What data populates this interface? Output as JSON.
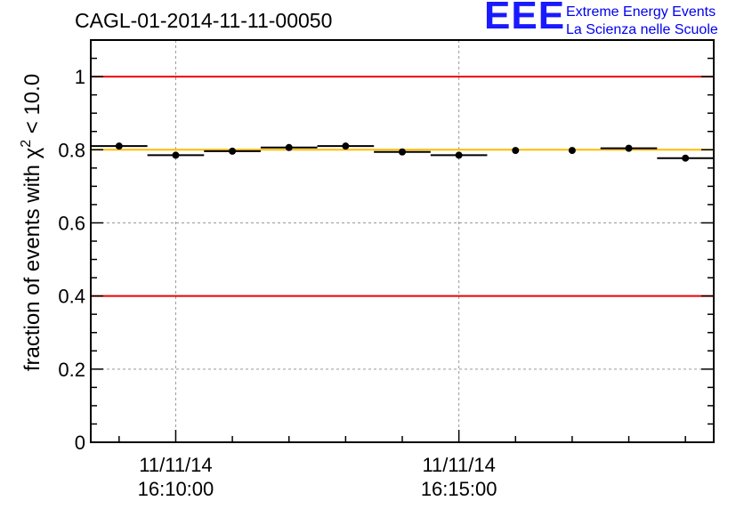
{
  "header": {
    "run_id": "CAGL-01-2014-11-11-00050",
    "logo_mark": "EEE",
    "logo_line1": "Extreme Energy Events",
    "logo_line2": "La Scienza nelle Scuole"
  },
  "chart_data": {
    "type": "scatter",
    "title": "CAGL-01-2014-11-11-00050",
    "xlabel": "",
    "ylabel": "fraction of events with χ² < 10.0",
    "ylim": [
      0,
      1.1
    ],
    "yticks": [
      0,
      0.2,
      0.4,
      0.6,
      0.8,
      1
    ],
    "ytick_labels": [
      "0",
      "0.2",
      "0.4",
      "0.6",
      "0.8",
      "1"
    ],
    "xlim_minutes": [
      -1.5,
      9.5
    ],
    "xtick_major": [
      {
        "minute": 0,
        "date": "11/11/14",
        "time": "16:10:00"
      },
      {
        "minute": 5,
        "date": "11/11/14",
        "time": "16:15:00"
      }
    ],
    "xtick_minor_minutes": [
      -1,
      1,
      2,
      3,
      4,
      6,
      7,
      8,
      9
    ],
    "points": [
      {
        "x": -1.0,
        "y": 0.81,
        "x_err": 0.5
      },
      {
        "x": 0.0,
        "y": 0.785,
        "x_err": 0.5
      },
      {
        "x": 1.0,
        "y": 0.796,
        "x_err": 0.5
      },
      {
        "x": 2.0,
        "y": 0.806,
        "x_err": 0.5
      },
      {
        "x": 3.0,
        "y": 0.81,
        "x_err": 0.5
      },
      {
        "x": 4.0,
        "y": 0.794,
        "x_err": 0.5
      },
      {
        "x": 5.0,
        "y": 0.785,
        "x_err": 0.5
      },
      {
        "x": 6.0,
        "y": 0.798,
        "x_err": 0.0
      },
      {
        "x": 7.0,
        "y": 0.798,
        "x_err": 0.0
      },
      {
        "x": 8.0,
        "y": 0.804,
        "x_err": 0.5
      },
      {
        "x": 9.0,
        "y": 0.777,
        "x_err": 0.5
      }
    ],
    "reference_lines": [
      {
        "y": 1.0,
        "color": "#ee0000"
      },
      {
        "y": 0.4,
        "color": "#ee0000"
      },
      {
        "y": 0.8,
        "color": "#ffbb00"
      }
    ],
    "grid": true,
    "legend": "none",
    "colors": {
      "points": "#000000",
      "limit_lines": "#ee0000",
      "mean_line": "#ffbb00",
      "grid": "#999999",
      "logo": "#1a1aff"
    }
  }
}
